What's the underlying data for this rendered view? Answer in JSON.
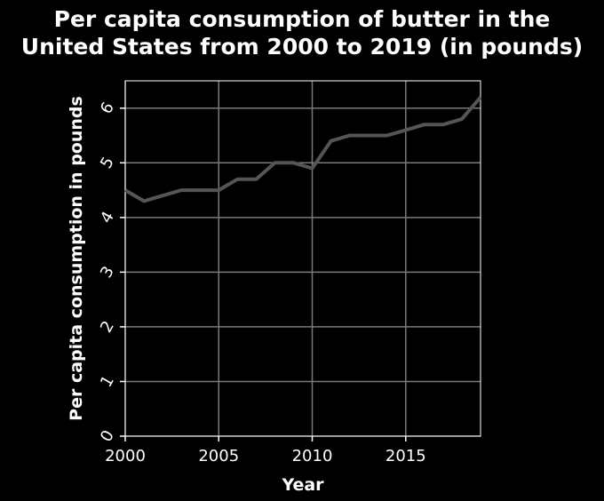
{
  "chart_data": {
    "type": "line",
    "title_line1": "Per capita consumption of butter in the",
    "title_line2": "United States from 2000 to 2019 (in pounds)",
    "xlabel": "Year",
    "ylabel": "Per capita consumption in pounds",
    "xlim": [
      2000,
      2019
    ],
    "ylim": [
      0,
      6.5
    ],
    "x_ticks": [
      2000,
      2005,
      2010,
      2015
    ],
    "y_ticks": [
      0,
      1,
      2,
      3,
      4,
      5,
      6
    ],
    "grid": true,
    "x": [
      2000,
      2001,
      2002,
      2003,
      2004,
      2005,
      2006,
      2007,
      2008,
      2009,
      2010,
      2011,
      2012,
      2013,
      2014,
      2015,
      2016,
      2017,
      2018,
      2019
    ],
    "series": [
      {
        "values": [
          4.5,
          4.3,
          4.4,
          4.5,
          4.5,
          4.5,
          4.7,
          4.7,
          5.0,
          5.0,
          4.9,
          5.4,
          5.5,
          5.5,
          5.5,
          5.6,
          5.7,
          5.7,
          5.8,
          6.2
        ]
      }
    ],
    "colors": {
      "background": "#000000",
      "plot_area": "#000000",
      "grid": "#7a7a7a",
      "line": "#555555",
      "text": "#ffffff"
    }
  }
}
